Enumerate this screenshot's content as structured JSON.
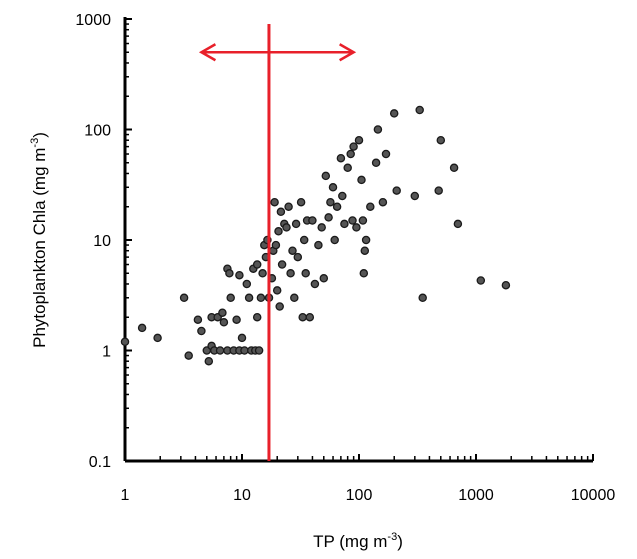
{
  "chart_data": {
    "type": "scatter",
    "title": "",
    "xlabel": {
      "main": "TP  (mg m",
      "sup": "-3",
      "tail": ")"
    },
    "ylabel": {
      "main": "Phytoplankton Chla (mg m",
      "sup": "-3",
      "tail": ")"
    },
    "xscale": "log",
    "yscale": "log",
    "xlim": [
      1,
      10000
    ],
    "ylim": [
      0.1,
      1000
    ],
    "x_ticks": [
      "1",
      "10",
      "100",
      "1000",
      "10000"
    ],
    "y_ticks": [
      "0.1",
      "1",
      "10",
      "100",
      "1000"
    ],
    "grid": false,
    "legend": null,
    "annotations": {
      "vertical_line_x": 17,
      "arrow": {
        "from_x": 4.5,
        "to_x": 90,
        "y": 500
      },
      "color": "#e8202a"
    },
    "series": [
      {
        "marker_color": "#555555",
        "points": [
          [
            1.0,
            1.2
          ],
          [
            1.4,
            1.6
          ],
          [
            1.9,
            1.3
          ],
          [
            3.2,
            3.0
          ],
          [
            3.5,
            0.9
          ],
          [
            4.2,
            1.9
          ],
          [
            4.5,
            1.5
          ],
          [
            5.0,
            1.0
          ],
          [
            5.2,
            0.8
          ],
          [
            5.5,
            1.1
          ],
          [
            5.5,
            2.0
          ],
          [
            5.8,
            1.0
          ],
          [
            6.2,
            2.0
          ],
          [
            6.5,
            1.0
          ],
          [
            6.8,
            2.2
          ],
          [
            7.0,
            1.8
          ],
          [
            7.5,
            1.0
          ],
          [
            7.5,
            5.5
          ],
          [
            7.8,
            5.0
          ],
          [
            8.0,
            3.0
          ],
          [
            8.5,
            1.0
          ],
          [
            9.0,
            1.9
          ],
          [
            9.5,
            1.0
          ],
          [
            9.5,
            4.8
          ],
          [
            10.0,
            1.3
          ],
          [
            10.5,
            1.0
          ],
          [
            11.0,
            4.0
          ],
          [
            11.5,
            3.0
          ],
          [
            12.0,
            1.0
          ],
          [
            12.5,
            5.5
          ],
          [
            13.0,
            1.0
          ],
          [
            13.5,
            2.0
          ],
          [
            13.5,
            6.0
          ],
          [
            14.0,
            1.0
          ],
          [
            14.5,
            3.0
          ],
          [
            15.0,
            5.0
          ],
          [
            15.5,
            9.0
          ],
          [
            16.0,
            7.0
          ],
          [
            16.5,
            10.0
          ],
          [
            17.0,
            3.0
          ],
          [
            18.0,
            4.5
          ],
          [
            18.5,
            8.0
          ],
          [
            19.0,
            22.0
          ],
          [
            19.5,
            9.0
          ],
          [
            20.0,
            3.5
          ],
          [
            20.5,
            12.0
          ],
          [
            21.0,
            2.5
          ],
          [
            21.5,
            18.0
          ],
          [
            22.0,
            6.0
          ],
          [
            23.0,
            14.0
          ],
          [
            24.0,
            13.0
          ],
          [
            25.0,
            20.0
          ],
          [
            26.0,
            5.0
          ],
          [
            27.0,
            8.0
          ],
          [
            28.0,
            3.0
          ],
          [
            29.0,
            14.0
          ],
          [
            30.0,
            7.0
          ],
          [
            32.0,
            22.0
          ],
          [
            33.0,
            2.0
          ],
          [
            34.0,
            10.0
          ],
          [
            35.0,
            5.0
          ],
          [
            36.0,
            15.0
          ],
          [
            38.0,
            2.0
          ],
          [
            40.0,
            15.0
          ],
          [
            42.0,
            4.0
          ],
          [
            45.0,
            9.0
          ],
          [
            48.0,
            13.0
          ],
          [
            50.0,
            4.5
          ],
          [
            52.0,
            38.0
          ],
          [
            55.0,
            16.0
          ],
          [
            57.0,
            22.0
          ],
          [
            60.0,
            30.0
          ],
          [
            62.0,
            10.0
          ],
          [
            65.0,
            20.0
          ],
          [
            70.0,
            55.0
          ],
          [
            72.0,
            25.0
          ],
          [
            75.0,
            14.0
          ],
          [
            80.0,
            45.0
          ],
          [
            85.0,
            60.0
          ],
          [
            88.0,
            15.0
          ],
          [
            90.0,
            70.0
          ],
          [
            95.0,
            13.0
          ],
          [
            100.0,
            80.0
          ],
          [
            105.0,
            35.0
          ],
          [
            108.0,
            15.0
          ],
          [
            110.0,
            5.0
          ],
          [
            112.0,
            8.0
          ],
          [
            115.0,
            10.0
          ],
          [
            125.0,
            20.0
          ],
          [
            140.0,
            50.0
          ],
          [
            145.0,
            100.0
          ],
          [
            160.0,
            22.0
          ],
          [
            170.0,
            60.0
          ],
          [
            200.0,
            140.0
          ],
          [
            210.0,
            28.0
          ],
          [
            300.0,
            25.0
          ],
          [
            330.0,
            150.0
          ],
          [
            350.0,
            3.0
          ],
          [
            480.0,
            28.0
          ],
          [
            500.0,
            80.0
          ],
          [
            650.0,
            45.0
          ],
          [
            700.0,
            14.0
          ],
          [
            1100.0,
            4.3
          ],
          [
            1800.0,
            3.9
          ]
        ]
      }
    ]
  }
}
